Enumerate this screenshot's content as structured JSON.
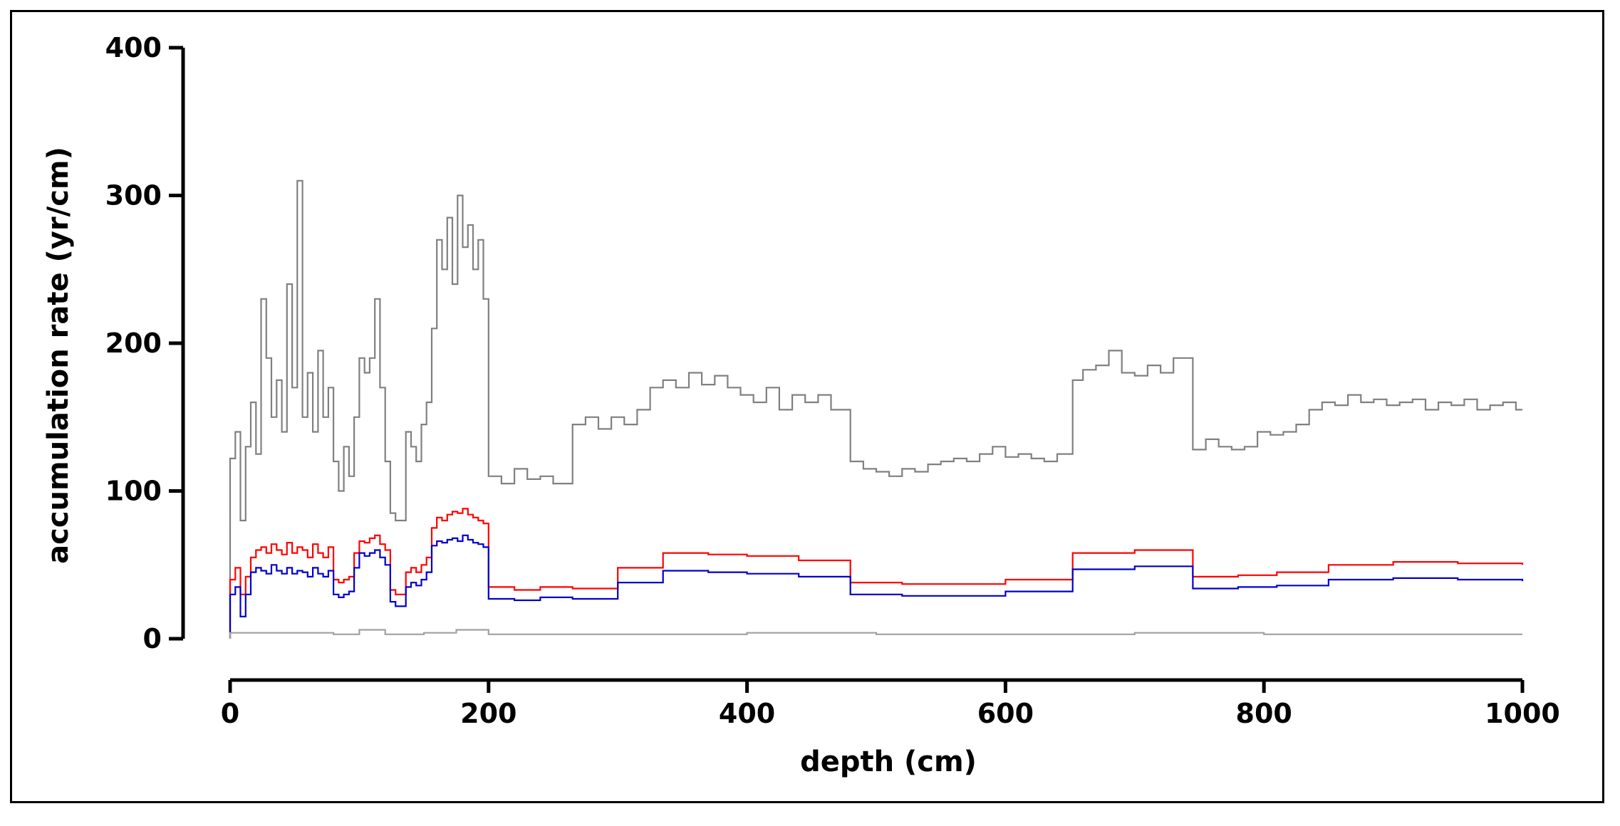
{
  "chart_data": {
    "type": "line",
    "title": "",
    "xlabel": "depth (cm)",
    "ylabel": "accumulation rate (yr/cm)",
    "xlim": [
      0,
      1000
    ],
    "ylim": [
      0,
      400
    ],
    "xticks": [
      0,
      200,
      400,
      600,
      800,
      1000
    ],
    "yticks": [
      0,
      100,
      200,
      300,
      400
    ],
    "grid": false,
    "legend": "none",
    "series": [
      {
        "color": "#808080",
        "style": "step",
        "x": [
          0,
          4,
          8,
          12,
          16,
          20,
          24,
          28,
          32,
          36,
          40,
          44,
          48,
          52,
          56,
          60,
          64,
          68,
          72,
          76,
          80,
          84,
          88,
          92,
          96,
          100,
          104,
          108,
          112,
          116,
          120,
          124,
          128,
          132,
          136,
          140,
          144,
          148,
          152,
          156,
          160,
          164,
          168,
          172,
          176,
          180,
          184,
          188,
          192,
          196,
          200,
          210,
          220,
          230,
          240,
          250,
          265,
          275,
          285,
          295,
          305,
          315,
          325,
          335,
          345,
          355,
          365,
          375,
          385,
          395,
          405,
          415,
          425,
          435,
          445,
          455,
          465,
          480,
          490,
          500,
          510,
          520,
          530,
          540,
          550,
          560,
          570,
          580,
          590,
          600,
          610,
          620,
          630,
          640,
          652,
          660,
          670,
          680,
          690,
          700,
          710,
          720,
          730,
          745,
          755,
          765,
          775,
          785,
          795,
          805,
          815,
          825,
          835,
          845,
          855,
          865,
          875,
          885,
          895,
          905,
          915,
          925,
          935,
          945,
          955,
          965,
          975,
          985,
          995
        ],
        "y": [
          122,
          140,
          80,
          130,
          160,
          125,
          230,
          190,
          150,
          175,
          140,
          240,
          170,
          310,
          150,
          180,
          140,
          195,
          150,
          170,
          120,
          100,
          130,
          110,
          150,
          190,
          180,
          190,
          230,
          170,
          120,
          85,
          80,
          80,
          140,
          130,
          120,
          145,
          160,
          210,
          270,
          250,
          285,
          240,
          300,
          265,
          280,
          250,
          270,
          230,
          110,
          105,
          115,
          108,
          110,
          105,
          145,
          150,
          142,
          150,
          145,
          155,
          170,
          175,
          170,
          180,
          172,
          178,
          170,
          165,
          160,
          170,
          155,
          165,
          160,
          165,
          155,
          120,
          115,
          113,
          110,
          115,
          113,
          118,
          120,
          122,
          120,
          125,
          130,
          123,
          125,
          122,
          120,
          125,
          175,
          182,
          185,
          195,
          180,
          178,
          185,
          180,
          190,
          128,
          135,
          130,
          128,
          130,
          140,
          138,
          140,
          145,
          155,
          160,
          158,
          165,
          160,
          162,
          158,
          160,
          162,
          155,
          160,
          158,
          162,
          155,
          158,
          160,
          155
        ]
      },
      {
        "color": "#ff0000",
        "style": "step",
        "x": [
          0,
          4,
          8,
          12,
          16,
          20,
          24,
          28,
          32,
          36,
          40,
          44,
          48,
          52,
          56,
          60,
          64,
          68,
          72,
          76,
          80,
          84,
          88,
          92,
          96,
          100,
          104,
          108,
          112,
          116,
          120,
          124,
          128,
          132,
          136,
          140,
          144,
          148,
          152,
          156,
          160,
          164,
          168,
          172,
          176,
          180,
          184,
          188,
          192,
          196,
          200,
          220,
          240,
          265,
          300,
          335,
          370,
          400,
          440,
          480,
          520,
          560,
          600,
          652,
          700,
          745,
          780,
          810,
          850,
          900,
          950,
          1000
        ],
        "y": [
          40,
          48,
          30,
          42,
          55,
          60,
          62,
          58,
          64,
          60,
          57,
          65,
          58,
          62,
          60,
          55,
          64,
          58,
          55,
          62,
          40,
          38,
          40,
          42,
          58,
          66,
          65,
          68,
          70,
          64,
          60,
          33,
          30,
          30,
          45,
          48,
          45,
          50,
          55,
          75,
          82,
          80,
          84,
          86,
          85,
          88,
          84,
          82,
          80,
          78,
          35,
          33,
          35,
          34,
          48,
          58,
          57,
          56,
          53,
          38,
          37,
          37,
          40,
          58,
          60,
          42,
          43,
          45,
          50,
          52,
          51,
          50
        ]
      },
      {
        "color": "#0000cc",
        "style": "step",
        "x": [
          0,
          4,
          8,
          12,
          16,
          20,
          24,
          28,
          32,
          36,
          40,
          44,
          48,
          52,
          56,
          60,
          64,
          68,
          72,
          76,
          80,
          84,
          88,
          92,
          96,
          100,
          104,
          108,
          112,
          116,
          120,
          124,
          128,
          132,
          136,
          140,
          144,
          148,
          152,
          156,
          160,
          164,
          168,
          172,
          176,
          180,
          184,
          188,
          192,
          196,
          200,
          220,
          240,
          265,
          300,
          335,
          370,
          400,
          440,
          480,
          520,
          560,
          600,
          652,
          700,
          745,
          780,
          810,
          850,
          900,
          950,
          1000
        ],
        "y": [
          30,
          35,
          15,
          30,
          45,
          48,
          46,
          44,
          50,
          46,
          44,
          48,
          44,
          46,
          45,
          42,
          48,
          44,
          42,
          46,
          30,
          28,
          30,
          32,
          48,
          58,
          56,
          58,
          60,
          55,
          50,
          25,
          22,
          22,
          35,
          38,
          36,
          40,
          45,
          63,
          66,
          65,
          67,
          68,
          66,
          70,
          67,
          65,
          64,
          62,
          27,
          26,
          28,
          27,
          38,
          46,
          45,
          44,
          42,
          30,
          29,
          29,
          32,
          47,
          49,
          34,
          35,
          36,
          40,
          41,
          40,
          39
        ]
      },
      {
        "color": "#a0a0a0",
        "style": "step",
        "x": [
          0,
          50,
          80,
          100,
          120,
          150,
          175,
          200,
          300,
          400,
          500,
          600,
          700,
          800,
          900,
          1000
        ],
        "y": [
          4,
          4,
          3,
          6,
          3,
          4,
          6,
          3,
          3,
          4,
          3,
          3,
          4,
          3,
          3,
          3
        ]
      }
    ]
  }
}
